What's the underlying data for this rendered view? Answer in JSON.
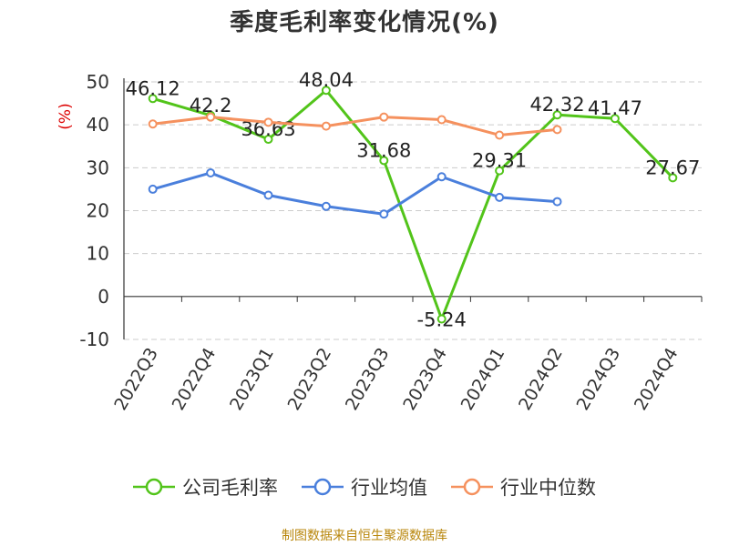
{
  "chart_data": {
    "type": "line",
    "title": "季度毛利率变化情况(%)",
    "ylabel": "(%)",
    "categories": [
      "2022Q3",
      "2022Q4",
      "2023Q1",
      "2023Q2",
      "2023Q3",
      "2023Q4",
      "2024Q1",
      "2024Q2",
      "2024Q3",
      "2024Q4"
    ],
    "ylim": [
      -10,
      50
    ],
    "yticks": [
      -10,
      0,
      10,
      20,
      30,
      40,
      50
    ],
    "grid": true,
    "legend_position": "bottom",
    "series": [
      {
        "name": "公司毛利率",
        "color": "#52c41a",
        "values": [
          46.12,
          42.2,
          36.63,
          48.04,
          31.68,
          -5.24,
          29.31,
          42.32,
          41.47,
          27.67
        ],
        "labels": [
          "46.12",
          "42.2",
          "36.63",
          "48.04",
          "31.68",
          "-5.24",
          "29.31",
          "42.32",
          "41.47",
          "27.67"
        ]
      },
      {
        "name": "行业均值",
        "color": "#4a7fdc",
        "values": [
          25.0,
          28.8,
          23.6,
          21.0,
          19.2,
          27.9,
          23.1,
          22.1,
          null,
          null
        ]
      },
      {
        "name": "行业中位数",
        "color": "#f5915e",
        "values": [
          40.2,
          41.8,
          40.6,
          39.7,
          41.8,
          41.2,
          37.6,
          38.9,
          null,
          null
        ]
      }
    ]
  },
  "source": "制图数据来自恒生聚源数据库"
}
